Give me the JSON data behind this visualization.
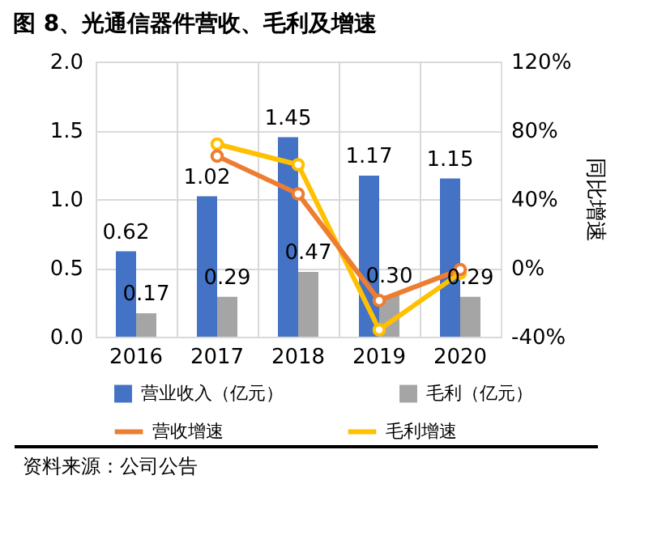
{
  "chart_data": {
    "type": "bar",
    "title": "图 8、光通信器件营收、毛利及增速",
    "categories": [
      "2016",
      "2017",
      "2018",
      "2019",
      "2020"
    ],
    "series": [
      {
        "name": "营业收入（亿元）",
        "color": "#4472c4",
        "values": [
          0.62,
          1.02,
          1.45,
          1.17,
          1.15
        ],
        "value_labels": [
          "0.62",
          "1.02",
          "1.45",
          "1.17",
          "1.15"
        ]
      },
      {
        "name": "毛利（亿元）",
        "color": "#a5a5a5",
        "values": [
          0.17,
          0.29,
          0.47,
          0.3,
          0.29
        ],
        "value_labels": [
          "0.17",
          "0.29",
          "0.47",
          "0.30",
          "0.29"
        ]
      },
      {
        "name": "营收增速",
        "type": "line",
        "axis": "y2",
        "color": "#ed7d31",
        "values": [
          null,
          65,
          43,
          -19,
          -1
        ]
      },
      {
        "name": "毛利增速",
        "type": "line",
        "axis": "y2",
        "color": "#ffc000",
        "values": [
          null,
          72,
          60,
          -36,
          -3
        ]
      }
    ],
    "ylim": [
      0,
      2.0
    ],
    "yticks": [
      {
        "value": 0,
        "label": "0.0"
      },
      {
        "value": 0.5,
        "label": "0.5"
      },
      {
        "value": 1.0,
        "label": "1.0"
      },
      {
        "value": 1.5,
        "label": "1.5"
      },
      {
        "value": 2.0,
        "label": "2.0"
      }
    ],
    "y2lim": [
      -40,
      120
    ],
    "y2ticks": [
      {
        "value": -40,
        "label": "-40%"
      },
      {
        "value": 0,
        "label": "0%"
      },
      {
        "value": 40,
        "label": "40%"
      },
      {
        "value": 80,
        "label": "80%"
      },
      {
        "value": 120,
        "label": "120%"
      }
    ],
    "y2label": "同比增速",
    "grid": true,
    "legend": "bottom",
    "marker": "circle",
    "line_style": "solid",
    "annotations": [
      "资料来源：公司公告"
    ]
  }
}
